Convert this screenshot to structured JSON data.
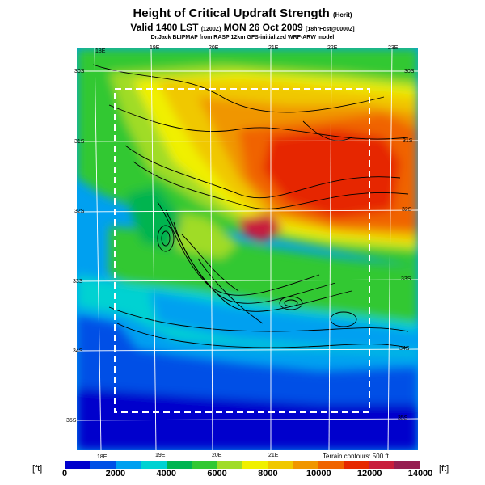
{
  "header": {
    "title": "Height of Critical Updraft Strength",
    "title_unit": "(Hcrit)",
    "valid_line": "Valid 1400 LST",
    "valid_code": "(1200Z)",
    "valid_date": "MON 26 Oct 2009",
    "forecast": "[18hrFcst@0000Z]",
    "credit": "Dr.Jack BLIPMAP from RASP 12km GFS-initialized WRF-ARW model"
  },
  "map": {
    "lon_top_labels": [
      "18E",
      "19E",
      "20E",
      "21E",
      "22E",
      "23E"
    ],
    "lon_bottom_labels": [
      "18E",
      "19E",
      "20E",
      "21E"
    ],
    "lat_left_labels": [
      "30S",
      "31S",
      "32S",
      "33S",
      "34S",
      "35S"
    ],
    "lat_right_labels": [
      "30S",
      "31S",
      "32S",
      "33S",
      "34S",
      "35S"
    ],
    "terrain_note": "Terrain contours: 500 ft"
  },
  "colorbar": {
    "unit_left": "[ft]",
    "unit_right": "[ft]",
    "tick_labels": [
      "0",
      "2000",
      "4000",
      "6000",
      "8000",
      "10000",
      "12000",
      "14000"
    ],
    "colors": [
      "#0000cc",
      "#0050e6",
      "#00a0f0",
      "#00d2d2",
      "#00b450",
      "#32c832",
      "#a0dc28",
      "#f0f000",
      "#f0c800",
      "#f09600",
      "#f06400",
      "#e62800",
      "#c81e3c",
      "#961e50"
    ]
  }
}
